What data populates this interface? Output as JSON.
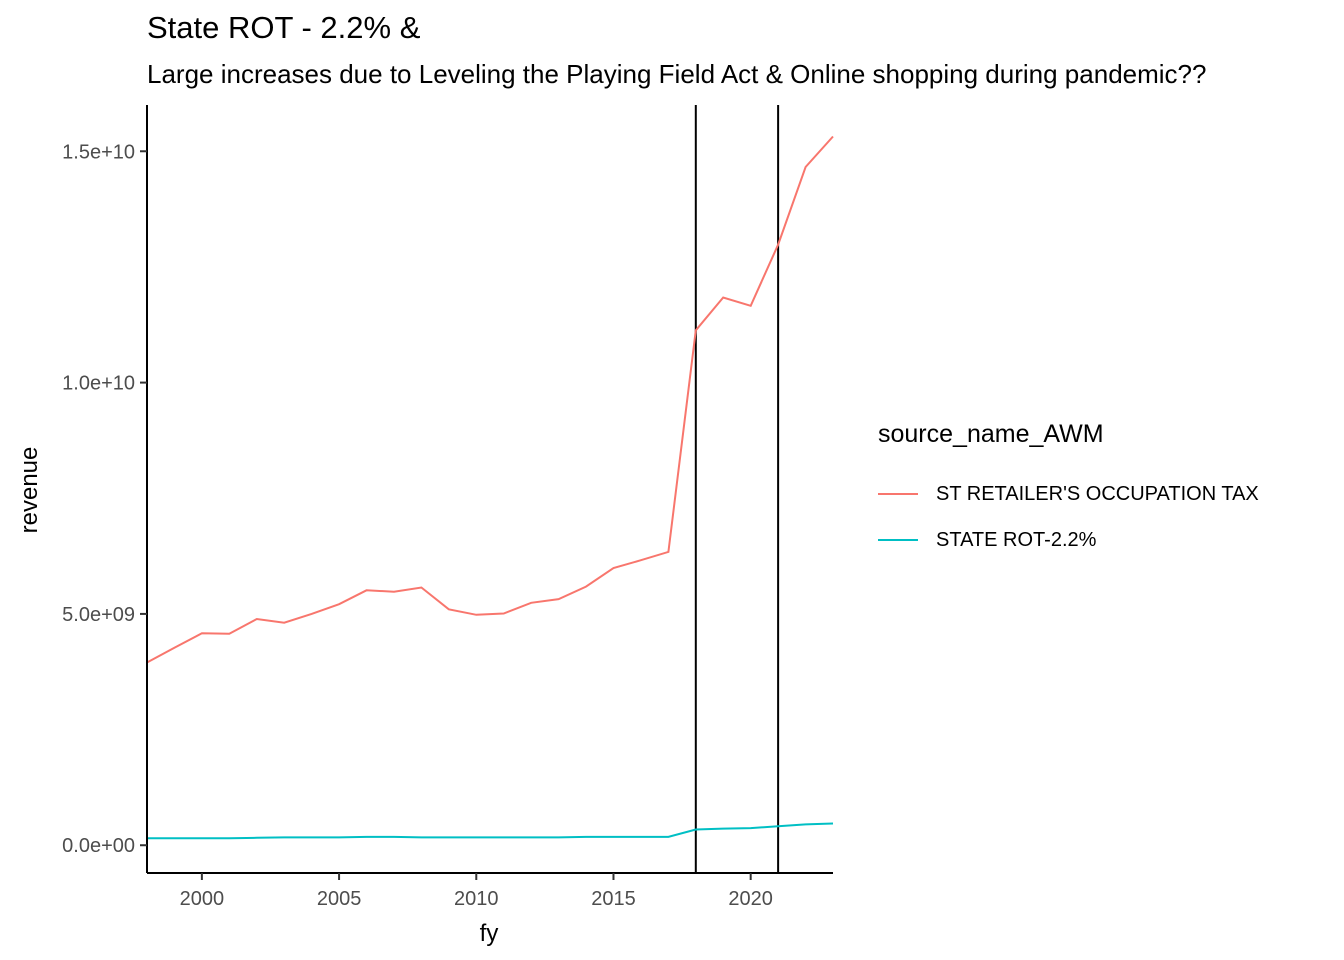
{
  "chart_data": {
    "type": "line",
    "title": "State ROT - 2.2% &",
    "subtitle": "Large increases due to Leveling the Playing Field Act & Online shopping during pandemic??",
    "xlabel": "fy",
    "ylabel": "revenue",
    "xlim": [
      1998,
      2023
    ],
    "ylim": [
      -600000000,
      16000000000
    ],
    "x_ticks": [
      2000,
      2005,
      2010,
      2015,
      2020
    ],
    "x_tick_labels": [
      "2000",
      "2005",
      "2010",
      "2015",
      "2020"
    ],
    "y_ticks": [
      0,
      5000000000,
      10000000000,
      15000000000
    ],
    "y_tick_labels": [
      "0.0e+00",
      "5.0e+09",
      "1.0e+10",
      "1.5e+10"
    ],
    "vlines": [
      2018,
      2021
    ],
    "grid": false,
    "legend": {
      "title": "source_name_AWM",
      "position": "right"
    },
    "series": [
      {
        "name": "ST RETAILER'S OCCUPATION TAX",
        "color": "#F8766D",
        "x": [
          1998,
          1999,
          2000,
          2001,
          2002,
          2003,
          2004,
          2005,
          2006,
          2007,
          2008,
          2009,
          2010,
          2011,
          2012,
          2013,
          2014,
          2015,
          2016,
          2017,
          2018,
          2019,
          2020,
          2021,
          2022,
          2023
        ],
        "values": [
          3950000000,
          4270000000,
          4580000000,
          4570000000,
          4890000000,
          4810000000,
          5000000000,
          5210000000,
          5510000000,
          5480000000,
          5570000000,
          5100000000,
          4980000000,
          5010000000,
          5240000000,
          5320000000,
          5590000000,
          5990000000,
          6160000000,
          6340000000,
          11130000000,
          11840000000,
          11660000000,
          12980000000,
          14660000000,
          15320000000
        ]
      },
      {
        "name": "STATE ROT-2.2%",
        "color": "#00BFC4",
        "x": [
          1998,
          1999,
          2000,
          2001,
          2002,
          2003,
          2004,
          2005,
          2006,
          2007,
          2008,
          2009,
          2010,
          2011,
          2012,
          2013,
          2014,
          2015,
          2016,
          2017,
          2018,
          2019,
          2020,
          2021,
          2022,
          2023
        ],
        "values": [
          150000000,
          150000000,
          150000000,
          150000000,
          160000000,
          170000000,
          170000000,
          170000000,
          180000000,
          180000000,
          170000000,
          170000000,
          170000000,
          170000000,
          170000000,
          170000000,
          180000000,
          180000000,
          180000000,
          180000000,
          340000000,
          360000000,
          370000000,
          410000000,
          450000000,
          470000000
        ]
      }
    ]
  }
}
